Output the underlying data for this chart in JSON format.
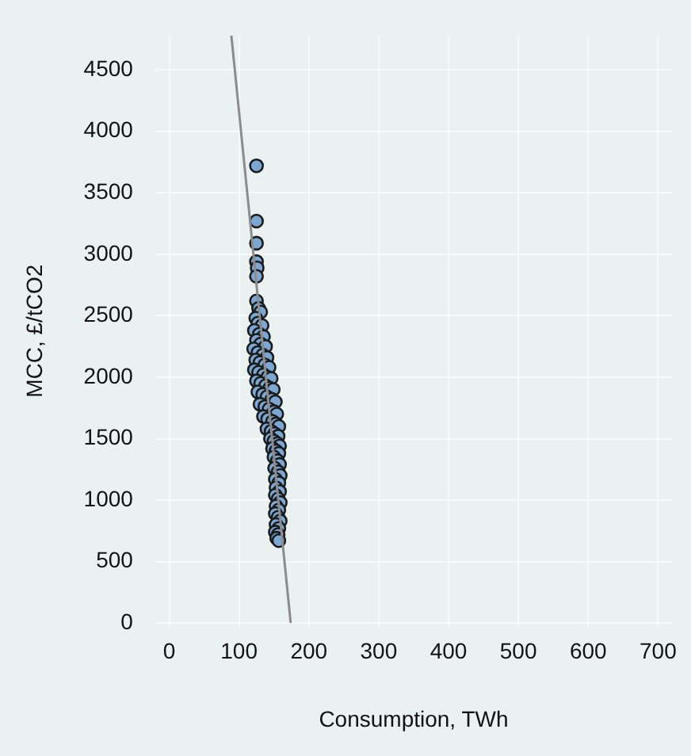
{
  "chart_data": {
    "type": "scatter",
    "xlabel": "Consumption, TWh",
    "ylabel": "MCC, £/tCO2",
    "xlim": [
      -20,
      720
    ],
    "ylim": [
      -30,
      4780
    ],
    "xticks": [
      0,
      100,
      200,
      300,
      400,
      500,
      600,
      700
    ],
    "yticks": [
      0,
      500,
      1000,
      1500,
      2000,
      2500,
      3000,
      3500,
      4000,
      4500
    ],
    "grid": true,
    "legend": false,
    "series": [
      {
        "marker": "circle",
        "color": "#7ba7d4",
        "x": [
          125,
          125,
          125,
          125,
          126,
          125,
          125,
          128,
          131,
          124,
          127,
          133,
          122,
          129,
          135,
          125,
          131,
          138,
          121,
          127,
          134,
          140,
          124,
          130,
          137,
          143,
          122,
          128,
          135,
          141,
          146,
          125,
          131,
          138,
          144,
          149,
          127,
          134,
          140,
          147,
          152,
          130,
          137,
          143,
          150,
          154,
          135,
          141,
          148,
          153,
          157,
          140,
          146,
          151,
          156,
          145,
          150,
          155,
          158,
          148,
          153,
          157,
          150,
          155,
          158,
          151,
          156,
          159,
          152,
          157,
          153,
          158,
          152,
          156,
          159,
          153,
          157,
          152,
          156,
          159,
          153,
          157,
          152,
          156,
          154,
          157
        ],
        "values": [
          3720,
          3270,
          3090,
          2940,
          2890,
          2820,
          2620,
          2560,
          2530,
          2480,
          2440,
          2420,
          2380,
          2350,
          2330,
          2300,
          2270,
          2250,
          2230,
          2200,
          2180,
          2160,
          2140,
          2120,
          2100,
          2080,
          2060,
          2040,
          2020,
          2000,
          1990,
          1970,
          1950,
          1930,
          1910,
          1900,
          1880,
          1860,
          1840,
          1820,
          1800,
          1780,
          1760,
          1740,
          1720,
          1700,
          1680,
          1660,
          1640,
          1620,
          1600,
          1580,
          1560,
          1540,
          1520,
          1500,
          1480,
          1460,
          1440,
          1420,
          1400,
          1380,
          1350,
          1320,
          1290,
          1260,
          1230,
          1200,
          1170,
          1140,
          1100,
          1070,
          1040,
          1010,
          980,
          950,
          920,
          890,
          860,
          830,
          800,
          770,
          740,
          720,
          690,
          670
        ]
      },
      {
        "type": "line",
        "color": "#8c8c8c",
        "x": [
          89,
          174
        ],
        "values": [
          4780,
          0
        ]
      }
    ]
  }
}
